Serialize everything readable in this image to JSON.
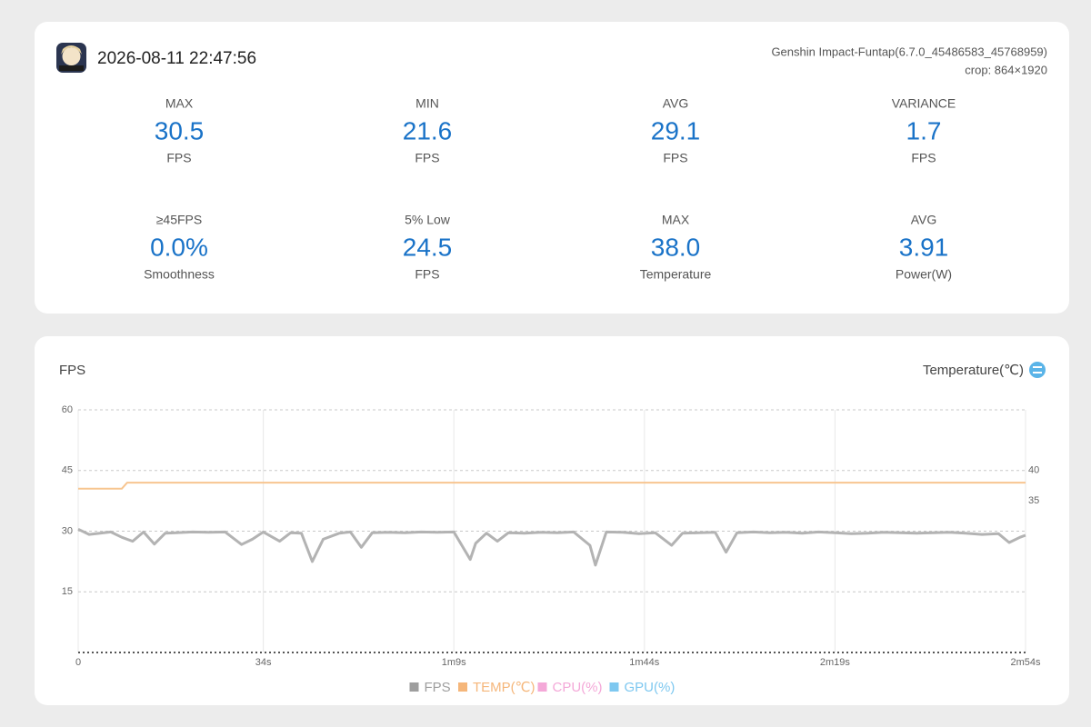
{
  "header": {
    "timestamp": "2026-08-11 22:47:56",
    "app": "Genshin Impact-Funtap(6.7.0_45486583_45768959)",
    "crop": "crop: 864×1920"
  },
  "stats": [
    {
      "label": "MAX",
      "value": "30.5",
      "unit": "FPS"
    },
    {
      "label": "MIN",
      "value": "21.6",
      "unit": "FPS"
    },
    {
      "label": "AVG",
      "value": "29.1",
      "unit": "FPS"
    },
    {
      "label": "VARIANCE",
      "value": "1.7",
      "unit": "FPS"
    },
    {
      "label": "≥45FPS",
      "value": "0.0%",
      "unit": "Smoothness"
    },
    {
      "label": "5% Low",
      "value": "24.5",
      "unit": "FPS"
    },
    {
      "label": "MAX",
      "value": "38.0",
      "unit": "Temperature"
    },
    {
      "label": "AVG",
      "value": "3.91",
      "unit": "Power(W)"
    }
  ],
  "chart_data": {
    "type": "line",
    "ylabel": "FPS",
    "y2label": "Temperature(℃)",
    "xlim": [
      0,
      174
    ],
    "xticks": [
      0,
      {
        "value": 34,
        "label": "34s"
      },
      {
        "value": 69,
        "label": "1m9s"
      },
      {
        "value": 104,
        "label": "1m44s"
      },
      {
        "value": 139,
        "label": "2m19s"
      },
      {
        "value": 174,
        "label": "2m54s"
      }
    ],
    "ylim": [
      0,
      60
    ],
    "yticks": [
      15,
      30,
      45,
      60
    ],
    "y2lim": [
      10,
      50
    ],
    "y2ticks": [
      35,
      40
    ],
    "grid": true,
    "series": [
      {
        "name": "FPS",
        "color": "#b3b3b3",
        "legend_color": "#9e9e9e",
        "x": [
          0,
          2,
          4,
          6,
          8,
          10,
          12,
          14,
          16,
          18,
          21,
          24,
          27,
          30,
          32,
          34,
          37,
          39,
          41,
          43,
          45,
          48,
          50,
          52,
          54,
          57,
          60,
          63,
          66,
          69,
          72,
          73,
          75,
          77,
          79,
          82,
          85,
          88,
          91,
          94,
          95,
          97,
          100,
          103,
          106,
          109,
          111,
          114,
          117,
          119,
          121,
          124,
          127,
          130,
          133,
          136,
          139,
          142,
          145,
          148,
          151,
          154,
          157,
          160,
          163,
          166,
          169,
          171,
          173,
          174
        ],
        "values": [
          30.5,
          29.2,
          29.5,
          29.8,
          28.5,
          27.5,
          29.8,
          26.8,
          29.5,
          29.6,
          29.8,
          29.7,
          29.8,
          26.7,
          28,
          29.8,
          27.5,
          29.6,
          29.5,
          22.5,
          28,
          29.5,
          29.8,
          26,
          29.6,
          29.7,
          29.6,
          29.8,
          29.7,
          29.8,
          23,
          27,
          29.5,
          27.5,
          29.6,
          29.5,
          29.7,
          29.6,
          29.8,
          26.5,
          21.6,
          29.8,
          29.7,
          29.4,
          29.6,
          26.5,
          29.5,
          29.6,
          29.7,
          24.8,
          29.6,
          29.8,
          29.6,
          29.7,
          29.5,
          29.8,
          29.6,
          29.4,
          29.5,
          29.7,
          29.6,
          29.5,
          29.6,
          29.7,
          29.5,
          29.2,
          29.4,
          27.2,
          28.5,
          29.0
        ]
      },
      {
        "name": "TEMP(℃)",
        "color": "#f7c590",
        "legend_color": "#f5b67a",
        "axis": "y2",
        "x": [
          0,
          8,
          9,
          174
        ],
        "values": [
          37,
          37,
          38,
          38
        ]
      },
      {
        "name": "CPU(%)",
        "color": "#f4a8d8",
        "legend_color": "#f4a8d8",
        "x": [],
        "values": []
      },
      {
        "name": "GPU(%)",
        "color": "#7ec8f0",
        "legend_color": "#7ec8f0",
        "x": [],
        "values": []
      }
    ]
  }
}
